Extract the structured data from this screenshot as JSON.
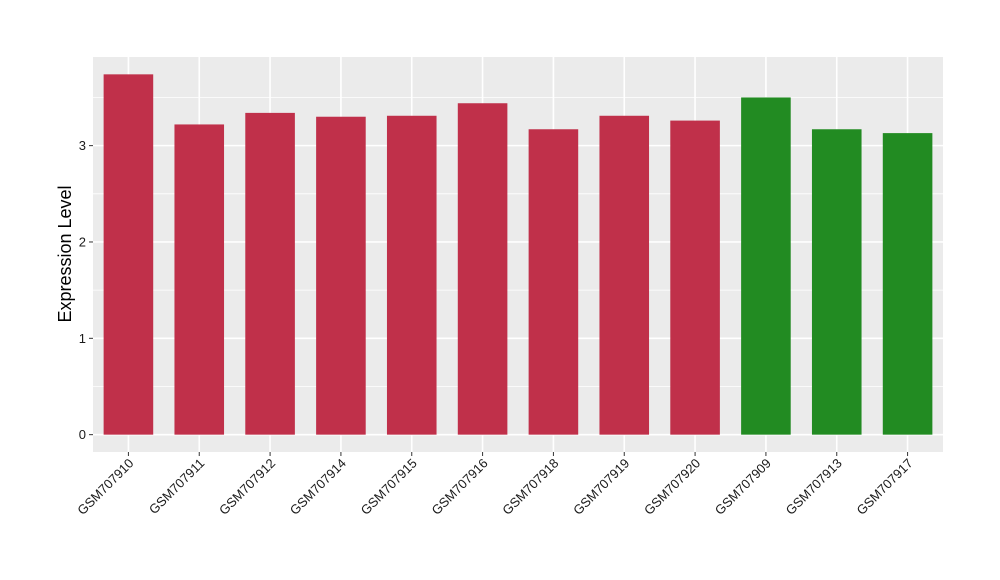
{
  "chart_data": {
    "type": "bar",
    "title": "",
    "xlabel": "",
    "ylabel": "Expression Level",
    "categories": [
      "GSM707910",
      "GSM707911",
      "GSM707912",
      "GSM707914",
      "GSM707915",
      "GSM707916",
      "GSM707918",
      "GSM707919",
      "GSM707920",
      "GSM707909",
      "GSM707913",
      "GSM707917"
    ],
    "values": [
      3.74,
      3.22,
      3.34,
      3.3,
      3.31,
      3.44,
      3.17,
      3.31,
      3.26,
      3.5,
      3.17,
      3.13
    ],
    "bar_colors": [
      "#c0304a",
      "#c0304a",
      "#c0304a",
      "#c0304a",
      "#c0304a",
      "#c0304a",
      "#c0304a",
      "#c0304a",
      "#c0304a",
      "#228b22",
      "#228b22",
      "#228b22"
    ],
    "y_ticks": [
      0,
      1,
      2,
      3
    ],
    "ylim": [
      -0.18,
      3.92
    ],
    "grid": true,
    "panel_background": "#ebebeb",
    "gridline_color": "#ffffff"
  }
}
